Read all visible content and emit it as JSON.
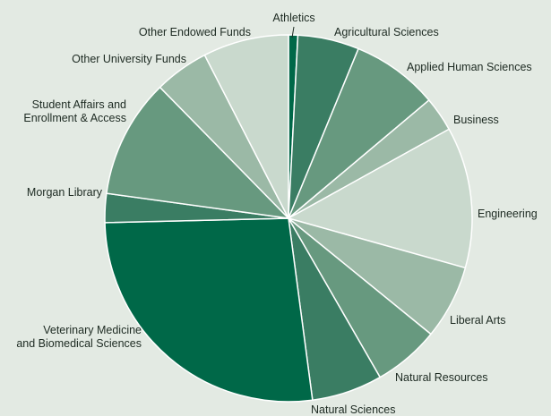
{
  "chart_data": {
    "type": "pie",
    "title": "",
    "legend": "none",
    "slices": [
      {
        "label": "Athletics",
        "value": 0.8,
        "color": "#006848"
      },
      {
        "label": "Agricultural Sciences",
        "value": 5.3,
        "color": "#3a7d63"
      },
      {
        "label": "Applied Human Sciences",
        "value": 7.5,
        "color": "#67997f"
      },
      {
        "label": "Business",
        "value": 3.0,
        "color": "#9bb9a6"
      },
      {
        "label": "Engineering",
        "value": 12.2,
        "color": "#c9d9cd"
      },
      {
        "label": "Liberal Arts",
        "value": 6.4,
        "color": "#9bb9a6"
      },
      {
        "label": "Natural Resources",
        "value": 5.7,
        "color": "#67997f"
      },
      {
        "label": "Natural Sciences",
        "value": 6.1,
        "color": "#3a7d63"
      },
      {
        "label": "Veterinary Medicine and Biomedical Sciences",
        "label_lines": [
          "Veterinary Medicine",
          "and Biomedical Sciences"
        ],
        "value": 26.2,
        "color": "#006848"
      },
      {
        "label": "Morgan Library",
        "value": 2.5,
        "color": "#3a7d63"
      },
      {
        "label": "Student Affairs and Enrollment & Access",
        "label_lines": [
          "Student Affairs and",
          "Enrollment & Access"
        ],
        "value": 10.3,
        "color": "#67997f"
      },
      {
        "label": "Other University Funds",
        "value": 4.7,
        "color": "#9bb9a6"
      },
      {
        "label": "Other Endowed Funds",
        "value": 7.4,
        "color": "#c9d9cd"
      }
    ]
  }
}
